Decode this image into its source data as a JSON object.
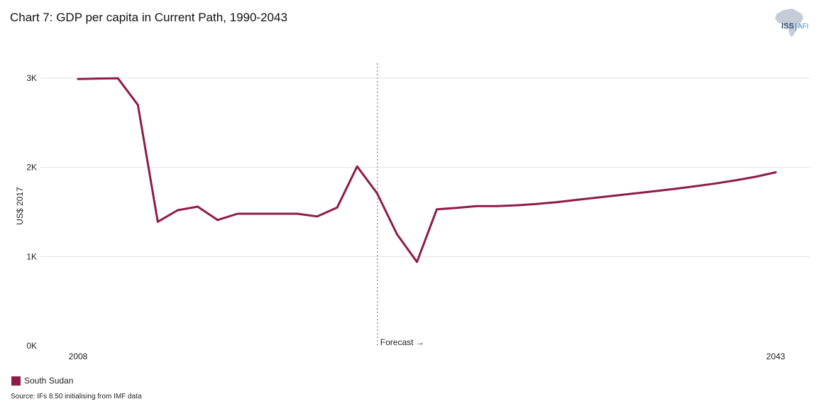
{
  "title": "Chart 7: GDP per capita in Current Path, 1990-2043",
  "logo": {
    "name": "ISS",
    "sub": "AFI"
  },
  "source": "Source: IFs 8.50 initialising from IMF data",
  "colors": {
    "series": "#8e1c48",
    "grid": "#e3e3e3",
    "forecast_line": "#9a9a9a"
  },
  "chart_data": {
    "type": "line",
    "title": "Chart 7: GDP per capita in Current Path, 1990-2043",
    "ylabel": "US$ 2017",
    "xlabel": "",
    "x_tick_labels": [
      "2008",
      "2043"
    ],
    "y_ticks": [
      0,
      1000,
      2000,
      3000
    ],
    "y_tick_labels": [
      "0K",
      "1K",
      "2K",
      "3K"
    ],
    "ylim": [
      0,
      3000
    ],
    "xlim": [
      2008,
      2043
    ],
    "grid": true,
    "legend_position": "bottom-left",
    "forecast": {
      "x": 2023,
      "label": "Forecast →"
    },
    "series": [
      {
        "name": "South Sudan",
        "color": "#8e1c48",
        "x": [
          2008,
          2009,
          2010,
          2011,
          2012,
          2013,
          2014,
          2015,
          2016,
          2017,
          2018,
          2019,
          2020,
          2021,
          2022,
          2023,
          2024,
          2025,
          2026,
          2027,
          2028,
          2029,
          2030,
          2031,
          2032,
          2033,
          2034,
          2035,
          2036,
          2037,
          2038,
          2039,
          2040,
          2041,
          2042,
          2043
        ],
        "values": [
          2990,
          2995,
          2998,
          2700,
          1390,
          1520,
          1560,
          1410,
          1480,
          1480,
          1480,
          1480,
          1450,
          1550,
          2010,
          1710,
          1250,
          940,
          1530,
          1545,
          1565,
          1565,
          1575,
          1590,
          1610,
          1635,
          1660,
          1685,
          1710,
          1735,
          1760,
          1790,
          1820,
          1855,
          1895,
          1945
        ]
      }
    ]
  }
}
